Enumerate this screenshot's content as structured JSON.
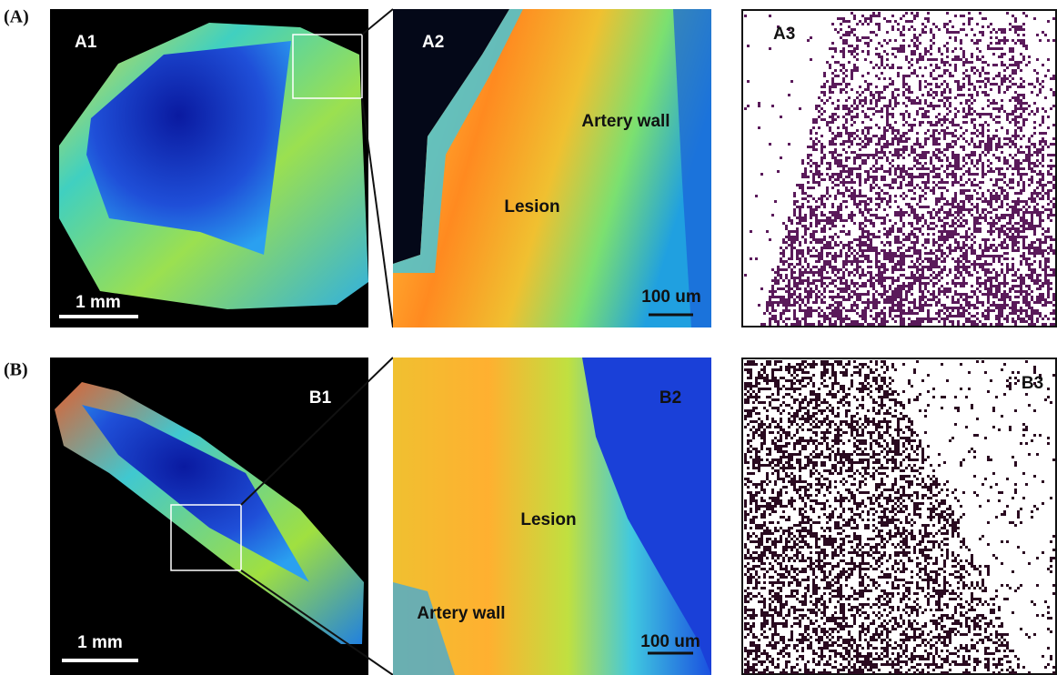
{
  "rows": [
    {
      "label": "(A)",
      "panels": [
        {
          "label": "A1",
          "scale_bar": "1 mm"
        },
        {
          "label": "A2",
          "annotations": [
            "Artery wall",
            "Lesion"
          ],
          "scale_bar": "100 um"
        },
        {
          "label": "A3"
        }
      ]
    },
    {
      "label": "(B)",
      "panels": [
        {
          "label": "B1",
          "scale_bar": "1 mm"
        },
        {
          "label": "B2",
          "annotations": [
            "Lesion",
            "Artery wall"
          ],
          "scale_bar": "100 um"
        },
        {
          "label": "B3"
        }
      ]
    }
  ]
}
